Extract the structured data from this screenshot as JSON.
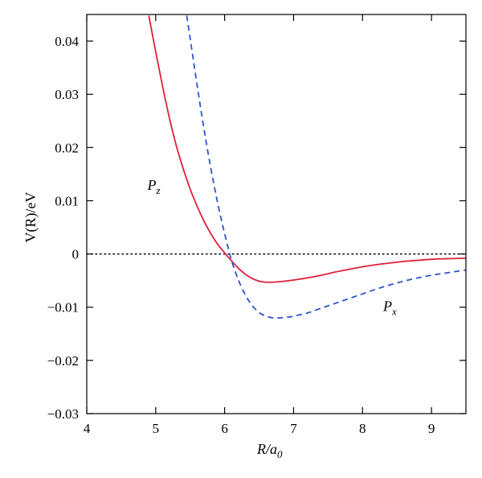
{
  "chart_data": {
    "type": "line",
    "title": "",
    "xlabel": {
      "main": "R/a",
      "sub": "0"
    },
    "ylabel": "V(R)/eV",
    "xlim": [
      4,
      9.5
    ],
    "ylim": [
      -0.03,
      0.045
    ],
    "xticks": [
      "4",
      "5",
      "6",
      "7",
      "8",
      "9"
    ],
    "yticks": [
      "−0.03",
      "−0.02",
      "−0.01",
      "0",
      "0.01",
      "0.02",
      "0.03",
      "0.04"
    ],
    "grid": false,
    "zero_line": {
      "y": 0,
      "style": "dotted",
      "color": "#000000"
    },
    "series": [
      {
        "name": "P_z",
        "label": {
          "main": "P",
          "sub": "z"
        },
        "color": "#e0203c",
        "dash": "solid",
        "x": [
          4.9,
          5.0,
          5.1,
          5.2,
          5.3,
          5.4,
          5.5,
          5.6,
          5.7,
          5.8,
          5.9,
          6.0,
          6.1,
          6.2,
          6.3,
          6.4,
          6.5,
          6.6,
          6.7,
          6.8,
          7.0,
          7.2,
          7.4,
          7.6,
          7.8,
          8.0,
          8.2,
          8.4,
          8.6,
          8.8,
          9.0,
          9.2,
          9.5
        ],
        "y": [
          0.0448,
          0.038,
          0.0315,
          0.0255,
          0.0203,
          0.016,
          0.0122,
          0.009,
          0.0062,
          0.0038,
          0.0018,
          0.0002,
          -0.0013,
          -0.0027,
          -0.0038,
          -0.0046,
          -0.0051,
          -0.0053,
          -0.0053,
          -0.0052,
          -0.0049,
          -0.0045,
          -0.004,
          -0.0034,
          -0.0029,
          -0.0024,
          -0.002,
          -0.0017,
          -0.0014,
          -0.0012,
          -0.001,
          -0.0009,
          -0.0008
        ]
      },
      {
        "name": "P_x",
        "label": {
          "main": "P",
          "sub": "x"
        },
        "color": "#2e54cc",
        "dash": "dashed",
        "x": [
          5.45,
          5.5,
          5.6,
          5.7,
          5.8,
          5.9,
          6.0,
          6.1,
          6.2,
          6.3,
          6.4,
          6.5,
          6.6,
          6.7,
          6.8,
          6.9,
          7.0,
          7.1,
          7.2,
          7.4,
          7.6,
          7.8,
          8.0,
          8.2,
          8.4,
          8.6,
          8.8,
          9.0,
          9.2,
          9.5
        ],
        "y": [
          0.0448,
          0.0405,
          0.0318,
          0.0235,
          0.0161,
          0.0095,
          0.0038,
          -0.0012,
          -0.0049,
          -0.0077,
          -0.0097,
          -0.011,
          -0.0117,
          -0.012,
          -0.012,
          -0.0119,
          -0.0117,
          -0.0114,
          -0.0111,
          -0.0102,
          -0.0093,
          -0.0084,
          -0.0075,
          -0.0066,
          -0.0058,
          -0.0051,
          -0.0045,
          -0.004,
          -0.0036,
          -0.003
        ]
      }
    ]
  }
}
